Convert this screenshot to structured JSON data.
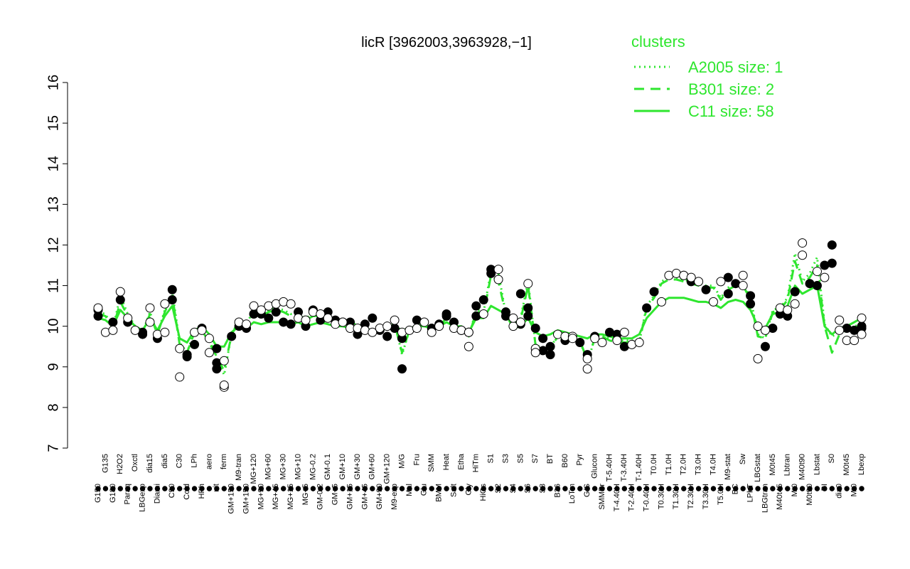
{
  "chart_data": {
    "type": "line",
    "title": "licR [3962003,3963928,−1]",
    "ylim": [
      7,
      16
    ],
    "yticks": [
      7,
      8,
      9,
      10,
      11,
      12,
      13,
      14,
      15,
      16
    ],
    "x_tick_labels": [
      "G150",
      "G135",
      "G180",
      "H2O2",
      "Paraq",
      "Oxctl",
      "LBGexp",
      "dia15",
      "Diami",
      "dia5",
      "C90",
      "C30",
      "Cold",
      "LPh",
      "HPh",
      "aero",
      "nit",
      "ferm",
      "GM+150",
      "M9-tran",
      "GM+150",
      "MG+120",
      "MG+90",
      "MG+60",
      "MG+45",
      "MG+30",
      "MG+15",
      "MG+10",
      "MG+5",
      "MG-0.2",
      "GM-0.2",
      "GM-0.1",
      "GM+5",
      "GM+10",
      "GM+15",
      "GM+30",
      "GM+45",
      "GM+60",
      "GM+90",
      "GM+120",
      "M9-exp",
      "M/G",
      "Mal",
      "Fru",
      "Glu",
      "SMM",
      "BMM",
      "Heat",
      "Salt",
      "Etha",
      "Gly",
      "HiTm",
      "HiOs",
      "S1",
      "S2",
      "S3",
      "S4",
      "S5",
      "S6",
      "S7",
      "S8",
      "BT",
      "B36",
      "B60",
      "LoTm",
      "Pyr",
      "G/S",
      "Glucon",
      "SMMPr",
      "T-5.40H",
      "T-4.40H",
      "T-3.40H",
      "T-2.40H",
      "T-1.40H",
      "T-0.40H",
      "T0.0H",
      "T0.30H",
      "T1.0H",
      "T1.30H",
      "T2.0H",
      "T2.30H",
      "T3.0H",
      "T3.30H",
      "T4.0H",
      "T5.0H",
      "M9-stat",
      "BC",
      "Sw",
      "LPhT",
      "LBGstat",
      "LBGtran",
      "M0t45",
      "M40t45",
      "Lbtran",
      "Mt0",
      "M40t90",
      "M0t90",
      "Lbstat",
      "BI",
      "S0",
      "dia0",
      "M0t45",
      "Mt0",
      "Lbexp"
    ],
    "series": [
      {
        "name": "A2005 size: 1",
        "style": "dotted",
        "values": [
          10.35,
          10.3,
          9.95,
          10.75,
          10.3,
          10.0,
          9.85,
          10.35,
          9.8,
          10.4,
          10.85,
          9.6,
          9.35,
          9.9,
          9.9,
          9.65,
          9.25,
          8.8,
          9.8,
          10.15,
          10.05,
          10.4,
          10.3,
          10.4,
          10.45,
          10.4,
          10.3,
          10.35,
          10.2,
          10.3,
          10.3,
          10.25,
          10.15,
          10.15,
          10.05,
          10.05,
          9.95,
          9.9,
          9.95,
          10.0,
          10.1,
          9.3,
          9.9,
          10.05,
          10.1,
          9.95,
          10.05,
          10.25,
          10.0,
          9.95,
          9.75,
          10.4,
          10.35,
          11.35,
          11.3,
          10.3,
          10.1,
          10.2,
          11.1,
          9.55,
          9.45,
          9.45,
          9.8,
          9.75,
          9.75,
          9.65,
          9.1,
          9.7,
          9.75,
          9.7,
          9.65,
          9.65,
          9.65,
          9.6,
          10.5,
          10.75,
          11.1,
          11.2,
          11.2,
          11.15,
          11.1,
          11.05,
          11.0,
          11.0,
          10.7,
          10.95,
          11.05,
          11.05,
          10.7,
          9.8,
          9.7,
          10.4,
          10.45,
          10.7,
          11.8,
          11.1,
          11.3,
          11.7,
          10.05,
          9.75,
          9.85,
          9.9,
          10.0,
          10.05
        ]
      },
      {
        "name": "B301 size: 2",
        "style": "dashed",
        "values": [
          10.3,
          10.25,
          9.95,
          10.6,
          10.25,
          9.95,
          9.85,
          10.3,
          9.8,
          10.35,
          10.75,
          9.55,
          9.35,
          9.85,
          9.9,
          9.6,
          9.25,
          8.9,
          9.8,
          10.1,
          10.05,
          10.35,
          10.25,
          10.35,
          10.4,
          10.35,
          10.25,
          10.3,
          10.15,
          10.25,
          10.25,
          10.2,
          10.1,
          10.1,
          10.0,
          10.0,
          9.95,
          9.9,
          9.9,
          9.95,
          10.05,
          9.35,
          9.9,
          10.0,
          10.05,
          9.95,
          10.0,
          10.2,
          9.95,
          9.95,
          9.75,
          10.35,
          10.3,
          11.25,
          11.1,
          10.3,
          10.05,
          10.15,
          11.0,
          9.55,
          9.45,
          9.45,
          9.75,
          9.7,
          9.7,
          9.65,
          9.15,
          9.7,
          9.75,
          9.65,
          9.6,
          9.6,
          9.6,
          9.6,
          10.45,
          10.7,
          11.05,
          11.15,
          11.15,
          11.1,
          11.05,
          11.0,
          10.95,
          10.95,
          10.65,
          10.9,
          11.0,
          11.0,
          10.65,
          9.75,
          9.7,
          10.35,
          10.4,
          10.65,
          11.6,
          11.05,
          11.2,
          11.5,
          10.0,
          9.35,
          9.8,
          9.9,
          10.0,
          10.1
        ]
      },
      {
        "name": "C11 size: 58",
        "style": "solid",
        "values": [
          10.2,
          10.15,
          10.0,
          10.4,
          10.2,
          10.0,
          9.9,
          10.2,
          9.9,
          10.25,
          10.5,
          9.7,
          9.6,
          9.9,
          10.0,
          9.8,
          9.5,
          9.5,
          9.85,
          10.0,
          9.95,
          10.1,
          10.05,
          10.1,
          10.1,
          10.1,
          10.05,
          10.1,
          10.0,
          10.05,
          10.1,
          10.05,
          10.0,
          10.0,
          9.95,
          9.95,
          9.9,
          9.9,
          9.9,
          9.95,
          10.0,
          9.9,
          9.95,
          10.0,
          10.0,
          9.95,
          10.0,
          10.1,
          10.0,
          10.0,
          9.85,
          10.2,
          10.2,
          10.5,
          10.4,
          10.3,
          9.95,
          10.0,
          10.2,
          9.85,
          9.75,
          9.8,
          9.9,
          9.85,
          9.8,
          9.75,
          9.7,
          9.8,
          9.8,
          9.75,
          9.7,
          9.7,
          9.7,
          9.8,
          10.2,
          10.4,
          10.6,
          10.7,
          10.7,
          10.7,
          10.65,
          10.6,
          10.6,
          10.55,
          10.45,
          10.6,
          10.65,
          10.6,
          10.4,
          10.0,
          9.95,
          10.3,
          10.35,
          10.5,
          11.0,
          10.8,
          10.9,
          11.0,
          10.0,
          9.8,
          9.95,
          10.0,
          10.1,
          10.2
        ]
      }
    ],
    "points": {
      "hollow": [
        [
          0,
          10.45
        ],
        [
          1,
          9.85
        ],
        [
          2,
          9.9
        ],
        [
          3,
          10.85
        ],
        [
          4,
          10.2
        ],
        [
          5,
          9.9
        ],
        [
          7,
          10.45
        ],
        [
          7,
          10.1
        ],
        [
          8,
          9.8
        ],
        [
          9,
          9.85
        ],
        [
          9,
          10.55
        ],
        [
          11,
          9.45
        ],
        [
          11,
          8.75
        ],
        [
          13,
          9.85
        ],
        [
          14,
          9.9
        ],
        [
          15,
          9.7
        ],
        [
          15,
          9.35
        ],
        [
          17,
          8.5
        ],
        [
          17,
          8.55
        ],
        [
          17,
          9.15
        ],
        [
          19,
          10.1
        ],
        [
          20,
          10.05
        ],
        [
          21,
          10.5
        ],
        [
          22,
          10.4
        ],
        [
          23,
          10.5
        ],
        [
          24,
          10.55
        ],
        [
          25,
          10.6
        ],
        [
          26,
          10.55
        ],
        [
          27,
          10.2
        ],
        [
          28,
          10.15
        ],
        [
          29,
          10.35
        ],
        [
          30,
          10.3
        ],
        [
          31,
          10.2
        ],
        [
          32,
          10.05
        ],
        [
          33,
          10.1
        ],
        [
          34,
          9.95
        ],
        [
          35,
          9.95
        ],
        [
          36,
          9.9
        ],
        [
          37,
          9.85
        ],
        [
          38,
          9.95
        ],
        [
          39,
          10.0
        ],
        [
          40,
          10.15
        ],
        [
          41,
          9.85
        ],
        [
          42,
          9.9
        ],
        [
          43,
          9.95
        ],
        [
          44,
          10.1
        ],
        [
          45,
          9.85
        ],
        [
          46,
          10.0
        ],
        [
          48,
          9.95
        ],
        [
          49,
          9.9
        ],
        [
          50,
          9.85
        ],
        [
          50,
          9.5
        ],
        [
          50,
          9.85
        ],
        [
          52,
          10.3
        ],
        [
          54,
          11.4
        ],
        [
          54,
          11.15
        ],
        [
          56,
          10.0
        ],
        [
          56,
          10.2
        ],
        [
          57,
          10.1
        ],
        [
          58,
          11.05
        ],
        [
          59,
          9.45
        ],
        [
          59,
          9.35
        ],
        [
          62,
          9.8
        ],
        [
          63,
          9.75
        ],
        [
          64,
          9.75
        ],
        [
          64,
          9.7
        ],
        [
          66,
          9.2
        ],
        [
          66,
          8.95
        ],
        [
          67,
          9.7
        ],
        [
          68,
          9.6
        ],
        [
          70,
          9.65
        ],
        [
          71,
          9.85
        ],
        [
          72,
          9.55
        ],
        [
          73,
          9.6
        ],
        [
          76,
          10.6
        ],
        [
          77,
          11.25
        ],
        [
          78,
          11.3
        ],
        [
          79,
          11.25
        ],
        [
          80,
          11.2
        ],
        [
          81,
          11.1
        ],
        [
          83,
          10.6
        ],
        [
          84,
          11.1
        ],
        [
          87,
          11.25
        ],
        [
          87,
          11.0
        ],
        [
          89,
          10.0
        ],
        [
          89,
          9.2
        ],
        [
          90,
          9.9
        ],
        [
          92,
          10.45
        ],
        [
          93,
          10.4
        ],
        [
          94,
          10.55
        ],
        [
          95,
          12.05
        ],
        [
          95,
          11.75
        ],
        [
          97,
          11.35
        ],
        [
          98,
          11.2
        ],
        [
          100,
          10.15
        ],
        [
          100,
          9.9
        ],
        [
          101,
          9.65
        ],
        [
          102,
          9.65
        ],
        [
          103,
          9.8
        ],
        [
          103,
          10.2
        ]
      ],
      "filled": [
        [
          0,
          10.25
        ],
        [
          0,
          10.4
        ],
        [
          2,
          10.1
        ],
        [
          3,
          10.65
        ],
        [
          4,
          10.1
        ],
        [
          6,
          9.85
        ],
        [
          6,
          9.8
        ],
        [
          8,
          9.7
        ],
        [
          10,
          10.9
        ],
        [
          10,
          10.65
        ],
        [
          12,
          9.25
        ],
        [
          12,
          9.3
        ],
        [
          13,
          9.55
        ],
        [
          14,
          9.95
        ],
        [
          16,
          9.45
        ],
        [
          16,
          9.1
        ],
        [
          16,
          8.95
        ],
        [
          18,
          9.75
        ],
        [
          19,
          10.0
        ],
        [
          20,
          9.95
        ],
        [
          21,
          10.3
        ],
        [
          22,
          10.3
        ],
        [
          23,
          10.2
        ],
        [
          24,
          10.35
        ],
        [
          25,
          10.1
        ],
        [
          26,
          10.05
        ],
        [
          27,
          10.35
        ],
        [
          28,
          10.0
        ],
        [
          29,
          10.4
        ],
        [
          30,
          10.15
        ],
        [
          31,
          10.35
        ],
        [
          32,
          10.15
        ],
        [
          33,
          10.1
        ],
        [
          34,
          10.1
        ],
        [
          35,
          9.8
        ],
        [
          36,
          10.05
        ],
        [
          37,
          10.2
        ],
        [
          38,
          9.9
        ],
        [
          39,
          9.75
        ],
        [
          40,
          9.95
        ],
        [
          41,
          9.7
        ],
        [
          41,
          8.95
        ],
        [
          43,
          10.15
        ],
        [
          45,
          9.95
        ],
        [
          46,
          10.05
        ],
        [
          47,
          10.25
        ],
        [
          47,
          10.3
        ],
        [
          48,
          10.1
        ],
        [
          49,
          9.9
        ],
        [
          51,
          10.5
        ],
        [
          51,
          10.25
        ],
        [
          52,
          10.65
        ],
        [
          53,
          11.3
        ],
        [
          53,
          11.4
        ],
        [
          55,
          10.35
        ],
        [
          55,
          10.25
        ],
        [
          57,
          10.8
        ],
        [
          57,
          10.05
        ],
        [
          58,
          10.45
        ],
        [
          58,
          10.25
        ],
        [
          59,
          9.95
        ],
        [
          60,
          9.7
        ],
        [
          60,
          9.4
        ],
        [
          61,
          9.5
        ],
        [
          61,
          9.3
        ],
        [
          63,
          9.65
        ],
        [
          65,
          9.6
        ],
        [
          66,
          9.3
        ],
        [
          67,
          9.75
        ],
        [
          69,
          9.85
        ],
        [
          70,
          9.8
        ],
        [
          71,
          9.5
        ],
        [
          74,
          10.45
        ],
        [
          75,
          10.85
        ],
        [
          79,
          11.25
        ],
        [
          80,
          11.1
        ],
        [
          82,
          10.9
        ],
        [
          85,
          11.2
        ],
        [
          85,
          10.8
        ],
        [
          86,
          11.05
        ],
        [
          88,
          10.75
        ],
        [
          88,
          10.55
        ],
        [
          90,
          9.5
        ],
        [
          91,
          9.95
        ],
        [
          92,
          10.3
        ],
        [
          93,
          10.25
        ],
        [
          94,
          10.85
        ],
        [
          96,
          11.05
        ],
        [
          97,
          11.0
        ],
        [
          98,
          11.5
        ],
        [
          99,
          12.0
        ],
        [
          99,
          11.55
        ],
        [
          101,
          9.95
        ],
        [
          102,
          9.9
        ],
        [
          103,
          9.95
        ],
        [
          103,
          10.0
        ]
      ]
    },
    "legend": {
      "title": "clusters",
      "placement": "top-right",
      "entries": [
        "A2005 size: 1",
        "B301 size: 2",
        "C11 size: 58"
      ]
    },
    "colors": {
      "line": "#2ee62e",
      "points": "#000000",
      "legend": "#2ee62e"
    },
    "grid": false
  }
}
